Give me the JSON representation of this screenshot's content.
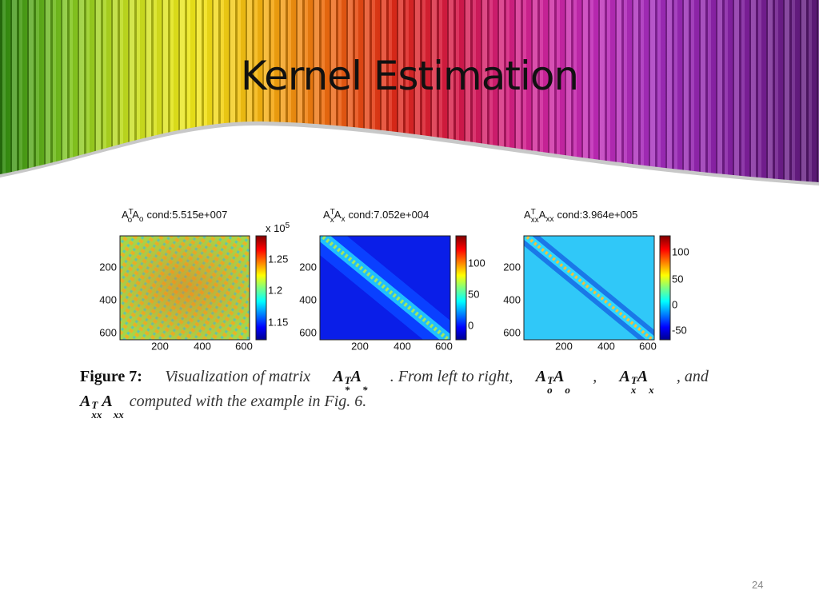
{
  "header": {
    "title": "Kernel Estimation"
  },
  "figure": {
    "panels": [
      {
        "label": {
          "a1": "A",
          "sup": "T",
          "sub1": "o",
          "a2": "A",
          "sub2": "o"
        },
        "cond": "cond:5.515e+007",
        "yticks": [
          "200",
          "400",
          "600"
        ],
        "xticks": [
          "200",
          "400",
          "600"
        ],
        "colorbar_scale": "x 10",
        "colorbar_exp": "5",
        "colorbar_ticks": [
          "1.25",
          "1.2",
          "1.15"
        ]
      },
      {
        "label": {
          "a1": "A",
          "sup": "T",
          "sub1": "x",
          "a2": "A",
          "sub2": "x"
        },
        "cond": "cond:7.052e+004",
        "yticks": [
          "200",
          "400",
          "600"
        ],
        "xticks": [
          "200",
          "400",
          "600"
        ],
        "colorbar_ticks": [
          "100",
          "50",
          "0"
        ]
      },
      {
        "label": {
          "a1": "A",
          "sup": "T",
          "sub1": "xx",
          "a2": "A",
          "sub2": "xx"
        },
        "cond": "cond:3.964e+005",
        "yticks": [
          "200",
          "400",
          "600"
        ],
        "xticks": [
          "200",
          "400",
          "600"
        ],
        "colorbar_ticks": [
          "100",
          "50",
          "0",
          "-50"
        ]
      }
    ],
    "caption": {
      "lines": [
        [
          {
            "bold": "Figure 7:"
          },
          {
            "text": "Visualization of matrix"
          },
          {
            "math": [
              {
                "b": "A",
                "sup": "T",
                "sub": "*"
              },
              {
                "b": "A",
                "sub": "*"
              }
            ]
          },
          {
            "text": ".  From left to right,"
          },
          {
            "math": [
              {
                "b": "A",
                "sup": "T",
                "sub": "o"
              },
              {
                "b": "A",
                "sub": "o"
              }
            ]
          },
          {
            "text": ","
          },
          {
            "math": [
              {
                "b": "A",
                "sup": "T",
                "sub": "x"
              },
              {
                "b": "A",
                "sub": "x"
              }
            ]
          },
          {
            "text": ", and"
          }
        ],
        [
          {
            "math": [
              {
                "b": "A",
                "sup": "T",
                "sub": "xx"
              },
              {
                "b": "A",
                "sub": "xx"
              }
            ]
          },
          {
            "text": "computed with the example in Fig. 6."
          }
        ]
      ]
    }
  },
  "footer": {
    "page_number": "24"
  }
}
